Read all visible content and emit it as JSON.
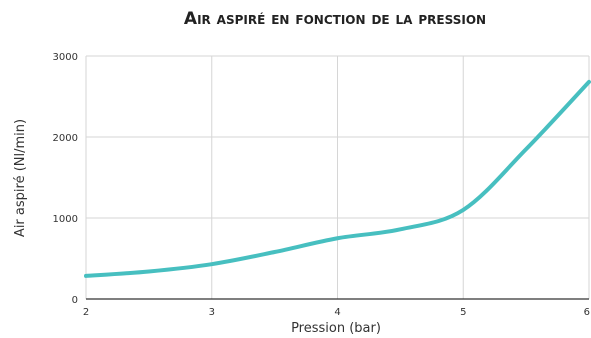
{
  "chart_data": {
    "type": "line",
    "title": "Air aspiré en fonction de la pression",
    "xlabel": "Pression (bar)",
    "ylabel": "Air aspiré (Nl/min)",
    "xlim": [
      2,
      6
    ],
    "ylim": [
      0,
      3000
    ],
    "x_ticks": [
      2,
      3,
      4,
      5,
      6
    ],
    "y_ticks": [
      0,
      1000,
      2000,
      3000
    ],
    "grid": true,
    "legend": "none",
    "series": [
      {
        "color": "#47bfc0",
        "x": [
          2,
          2.5,
          3,
          3.5,
          4,
          4.5,
          5,
          5.5,
          6
        ],
        "y": [
          285,
          340,
          430,
          580,
          750,
          860,
          1100,
          1850,
          2680
        ]
      }
    ]
  }
}
